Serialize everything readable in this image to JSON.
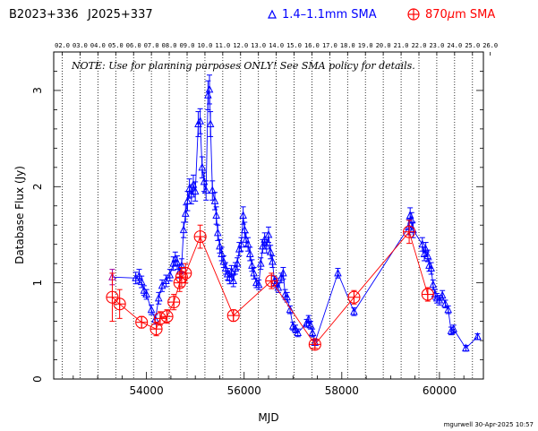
{
  "header": {
    "source_name": "B2023+336",
    "alt_name": "J2025+337",
    "legend_blue": "1.4–1.1mm SMA",
    "legend_red_prefix": "870",
    "legend_red_mu": "μ",
    "legend_red_suffix": "m SMA"
  },
  "note": "NOTE: Use for planning purposes ONLY! See SMA policy for details.",
  "footer": "mgurwell 30-Apr-2025 10:57",
  "colors": {
    "blue": "#0000ff",
    "red": "#ff0000",
    "purple": "#a000a0"
  },
  "chart_data": {
    "type": "scatter",
    "xlabel": "MJD",
    "ylabel": "Database Flux (Jy)",
    "xlim": [
      52100,
      60900
    ],
    "ylim": [
      0,
      3.4
    ],
    "x_ticks": [
      54000,
      56000,
      58000,
      60000
    ],
    "y_ticks": [
      0,
      1,
      2,
      3
    ],
    "year_ticks": {
      "labels": [
        "02.0",
        "03.0",
        "04.0",
        "05.0",
        "06.0",
        "07.0",
        "08.0",
        "09.0",
        "10.0",
        "11.0",
        "12.0",
        "13.0",
        "14.0",
        "15.0",
        "16.0",
        "17.0",
        "18.0",
        "19.0",
        "20.0",
        "21.0",
        "22.0",
        "23.0",
        "24.0",
        "25.0",
        "26.0"
      ],
      "mjd": [
        52275,
        52640,
        53005,
        53371,
        53736,
        54101,
        54466,
        54832,
        55197,
        55562,
        55927,
        56293,
        56658,
        57023,
        57388,
        57754,
        58119,
        58484,
        58849,
        59215,
        59580,
        59945,
        60310,
        60676,
        61041
      ]
    },
    "grid": "vertical dotted lines at each year boundary",
    "series": [
      {
        "name": "1.4–1.1mm SMA",
        "color": "#0000ff",
        "marker": "triangle",
        "points": [
          {
            "x": 53300,
            "y": 1.06,
            "e": 0.08,
            "c": "purple"
          },
          {
            "x": 53780,
            "y": 1.05,
            "e": 0.06
          },
          {
            "x": 53850,
            "y": 1.07,
            "e": 0.07
          },
          {
            "x": 53900,
            "y": 1.01,
            "e": 0.06
          },
          {
            "x": 53950,
            "y": 0.92,
            "e": 0.05
          },
          {
            "x": 54000,
            "y": 0.88,
            "e": 0.05
          },
          {
            "x": 54100,
            "y": 0.72,
            "e": 0.05
          },
          {
            "x": 54180,
            "y": 0.62,
            "e": 0.05
          },
          {
            "x": 54250,
            "y": 0.84,
            "e": 0.06
          },
          {
            "x": 54320,
            "y": 0.97,
            "e": 0.06
          },
          {
            "x": 54400,
            "y": 1.02,
            "e": 0.06
          },
          {
            "x": 54480,
            "y": 1.08,
            "e": 0.06
          },
          {
            "x": 54550,
            "y": 1.2,
            "e": 0.07
          },
          {
            "x": 54590,
            "y": 1.25,
            "e": 0.07
          },
          {
            "x": 54630,
            "y": 1.21,
            "e": 0.07
          },
          {
            "x": 54680,
            "y": 1.12,
            "e": 0.07
          },
          {
            "x": 54720,
            "y": 1.18,
            "e": 0.07
          },
          {
            "x": 54760,
            "y": 1.55,
            "e": 0.08
          },
          {
            "x": 54800,
            "y": 1.72,
            "e": 0.09
          },
          {
            "x": 54840,
            "y": 1.85,
            "e": 0.1
          },
          {
            "x": 54880,
            "y": 1.98,
            "e": 0.1
          },
          {
            "x": 54920,
            "y": 1.92,
            "e": 0.1
          },
          {
            "x": 54960,
            "y": 2.02,
            "e": 0.1
          },
          {
            "x": 55000,
            "y": 1.95,
            "e": 0.1
          },
          {
            "x": 55060,
            "y": 2.65,
            "e": 0.13
          },
          {
            "x": 55100,
            "y": 2.68,
            "e": 0.13
          },
          {
            "x": 55140,
            "y": 2.2,
            "e": 0.11
          },
          {
            "x": 55180,
            "y": 2.05,
            "e": 0.1
          },
          {
            "x": 55220,
            "y": 1.96,
            "e": 0.1
          },
          {
            "x": 55260,
            "y": 2.95,
            "e": 0.15
          },
          {
            "x": 55290,
            "y": 3.01,
            "e": 0.15
          },
          {
            "x": 55310,
            "y": 2.65,
            "e": 0.13
          },
          {
            "x": 55350,
            "y": 1.96,
            "e": 0.1
          },
          {
            "x": 55400,
            "y": 1.85,
            "e": 0.09
          },
          {
            "x": 55430,
            "y": 1.7,
            "e": 0.09
          },
          {
            "x": 55460,
            "y": 1.52,
            "e": 0.08
          },
          {
            "x": 55500,
            "y": 1.38,
            "e": 0.07
          },
          {
            "x": 55540,
            "y": 1.3,
            "e": 0.07
          },
          {
            "x": 55580,
            "y": 1.22,
            "e": 0.06
          },
          {
            "x": 55620,
            "y": 1.15,
            "e": 0.06
          },
          {
            "x": 55660,
            "y": 1.09,
            "e": 0.06
          },
          {
            "x": 55700,
            "y": 1.05,
            "e": 0.06
          },
          {
            "x": 55740,
            "y": 1.12,
            "e": 0.06
          },
          {
            "x": 55780,
            "y": 1.02,
            "e": 0.06
          },
          {
            "x": 55820,
            "y": 1.15,
            "e": 0.06
          },
          {
            "x": 55860,
            "y": 1.2,
            "e": 0.06
          },
          {
            "x": 55900,
            "y": 1.35,
            "e": 0.07
          },
          {
            "x": 55940,
            "y": 1.4,
            "e": 0.07
          },
          {
            "x": 55980,
            "y": 1.7,
            "e": 0.09
          },
          {
            "x": 56010,
            "y": 1.55,
            "e": 0.08
          },
          {
            "x": 56040,
            "y": 1.45,
            "e": 0.07
          },
          {
            "x": 56080,
            "y": 1.4,
            "e": 0.07
          },
          {
            "x": 56120,
            "y": 1.3,
            "e": 0.07
          },
          {
            "x": 56160,
            "y": 1.18,
            "e": 0.06
          },
          {
            "x": 56200,
            "y": 1.1,
            "e": 0.06
          },
          {
            "x": 56250,
            "y": 1.0,
            "e": 0.05
          },
          {
            "x": 56300,
            "y": 0.98,
            "e": 0.05
          },
          {
            "x": 56340,
            "y": 1.2,
            "e": 0.06
          },
          {
            "x": 56380,
            "y": 1.38,
            "e": 0.07
          },
          {
            "x": 56420,
            "y": 1.45,
            "e": 0.07
          },
          {
            "x": 56460,
            "y": 1.38,
            "e": 0.07
          },
          {
            "x": 56500,
            "y": 1.5,
            "e": 0.08
          },
          {
            "x": 56540,
            "y": 1.32,
            "e": 0.07
          },
          {
            "x": 56580,
            "y": 1.22,
            "e": 0.06
          },
          {
            "x": 56620,
            "y": 1.02,
            "e": 0.05
          },
          {
            "x": 56660,
            "y": 1.0,
            "e": 0.05
          },
          {
            "x": 56700,
            "y": 0.95,
            "e": 0.05
          },
          {
            "x": 56760,
            "y": 1.05,
            "e": 0.05
          },
          {
            "x": 56800,
            "y": 1.1,
            "e": 0.06
          },
          {
            "x": 56840,
            "y": 0.88,
            "e": 0.05
          },
          {
            "x": 56880,
            "y": 0.85,
            "e": 0.05
          },
          {
            "x": 56940,
            "y": 0.72,
            "e": 0.04
          },
          {
            "x": 57000,
            "y": 0.55,
            "e": 0.04
          },
          {
            "x": 57050,
            "y": 0.52,
            "e": 0.04
          },
          {
            "x": 57100,
            "y": 0.48,
            "e": 0.04
          },
          {
            "x": 57280,
            "y": 0.58,
            "e": 0.04
          },
          {
            "x": 57320,
            "y": 0.62,
            "e": 0.04
          },
          {
            "x": 57360,
            "y": 0.56,
            "e": 0.04
          },
          {
            "x": 57400,
            "y": 0.48,
            "e": 0.04
          },
          {
            "x": 57450,
            "y": 0.38,
            "e": 0.03
          },
          {
            "x": 57920,
            "y": 1.1,
            "e": 0.05
          },
          {
            "x": 58250,
            "y": 0.7,
            "e": 0.04
          },
          {
            "x": 59370,
            "y": 1.58,
            "e": 0.08
          },
          {
            "x": 59400,
            "y": 1.7,
            "e": 0.08
          },
          {
            "x": 59430,
            "y": 1.65,
            "e": 0.08
          },
          {
            "x": 59460,
            "y": 1.55,
            "e": 0.08
          },
          {
            "x": 59650,
            "y": 1.4,
            "e": 0.07
          },
          {
            "x": 59690,
            "y": 1.3,
            "e": 0.07
          },
          {
            "x": 59720,
            "y": 1.35,
            "e": 0.07
          },
          {
            "x": 59760,
            "y": 1.28,
            "e": 0.06
          },
          {
            "x": 59790,
            "y": 1.18,
            "e": 0.06
          },
          {
            "x": 59830,
            "y": 1.15,
            "e": 0.06
          },
          {
            "x": 59870,
            "y": 0.98,
            "e": 0.05
          },
          {
            "x": 59910,
            "y": 0.88,
            "e": 0.05
          },
          {
            "x": 59950,
            "y": 0.84,
            "e": 0.05
          },
          {
            "x": 60000,
            "y": 0.82,
            "e": 0.05
          },
          {
            "x": 60060,
            "y": 0.87,
            "e": 0.05
          },
          {
            "x": 60120,
            "y": 0.78,
            "e": 0.04
          },
          {
            "x": 60180,
            "y": 0.72,
            "e": 0.04
          },
          {
            "x": 60240,
            "y": 0.5,
            "e": 0.04
          },
          {
            "x": 60290,
            "y": 0.52,
            "e": 0.04
          },
          {
            "x": 60540,
            "y": 0.32,
            "e": 0.03
          },
          {
            "x": 60780,
            "y": 0.44,
            "e": 0.03
          }
        ]
      },
      {
        "name": "870μm SMA",
        "color": "#ff0000",
        "marker": "circle-plus",
        "points": [
          {
            "x": 53300,
            "y": 0.85,
            "e": 0.25
          },
          {
            "x": 53450,
            "y": 0.78,
            "e": 0.15
          },
          {
            "x": 53900,
            "y": 0.59,
            "e": 0.06
          },
          {
            "x": 54200,
            "y": 0.52,
            "e": 0.07
          },
          {
            "x": 54280,
            "y": 0.63,
            "e": 0.07
          },
          {
            "x": 54420,
            "y": 0.65,
            "e": 0.07
          },
          {
            "x": 54560,
            "y": 0.8,
            "e": 0.08
          },
          {
            "x": 54680,
            "y": 1.0,
            "e": 0.09
          },
          {
            "x": 54720,
            "y": 1.06,
            "e": 0.1
          },
          {
            "x": 54800,
            "y": 1.1,
            "e": 0.1
          },
          {
            "x": 55100,
            "y": 1.48,
            "e": 0.12
          },
          {
            "x": 55780,
            "y": 0.66,
            "e": 0.06
          },
          {
            "x": 56560,
            "y": 1.02,
            "e": 0.08
          },
          {
            "x": 57450,
            "y": 0.36,
            "e": 0.04
          },
          {
            "x": 58250,
            "y": 0.85,
            "e": 0.07
          },
          {
            "x": 59380,
            "y": 1.53,
            "e": 0.12
          },
          {
            "x": 59760,
            "y": 0.88,
            "e": 0.07
          }
        ]
      }
    ]
  }
}
